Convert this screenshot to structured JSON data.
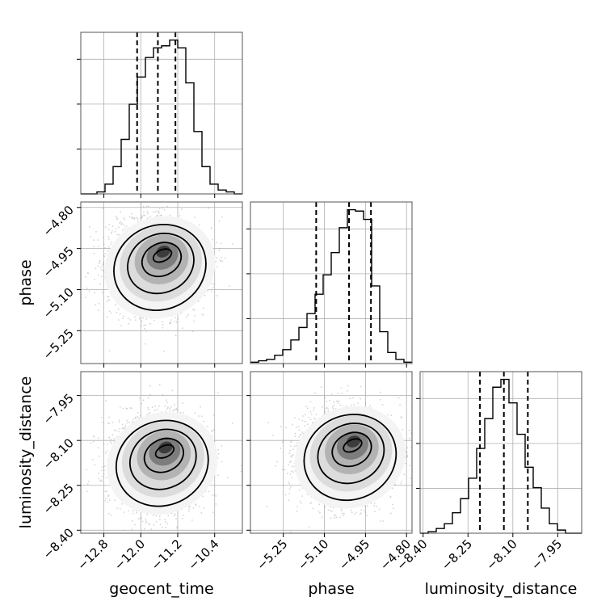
{
  "chart_data": {
    "type": "corner",
    "grid": true,
    "parameters": [
      "geocent_time",
      "phase",
      "luminosity_distance"
    ],
    "axis_labels": {
      "geocent_time": "geocent_time",
      "phase": "phase",
      "luminosity_distance": "luminosity_distance"
    },
    "ranges": {
      "geocent_time": [
        -13.3,
        -9.8
      ],
      "phase": [
        -5.37,
        -4.78
      ],
      "luminosity_distance": [
        -8.41,
        -7.87
      ]
    },
    "ticks": {
      "geocent_time": [
        -12.8,
        -12.0,
        -11.2,
        -10.4
      ],
      "phase": [
        -5.25,
        -5.1,
        -4.95,
        -4.8
      ],
      "luminosity_distance": [
        -8.4,
        -8.25,
        -8.1,
        -7.95
      ]
    },
    "tick_labels": {
      "geocent_time": [
        "−12.8",
        "−12.0",
        "−11.2",
        "−10.4"
      ],
      "phase": [
        "−5.25",
        "−5.10",
        "−4.95",
        "−4.80"
      ],
      "luminosity_distance": [
        "−8.40",
        "−8.25",
        "−8.10",
        "−7.95"
      ]
    },
    "quantiles": {
      "geocent_time": [
        -12.08,
        -11.63,
        -11.25
      ],
      "phase": [
        -5.13,
        -5.01,
        -4.93
      ],
      "luminosity_distance": [
        -8.21,
        -8.13,
        -8.05
      ]
    },
    "histograms": {
      "geocent_time": {
        "edges": [
          -13.3,
          -13.125,
          -12.95,
          -12.775,
          -12.6,
          -12.425,
          -12.25,
          -12.075,
          -11.9,
          -11.725,
          -11.55,
          -11.375,
          -11.2,
          -11.025,
          -10.85,
          -10.675,
          -10.5,
          -10.325,
          -10.15,
          -9.975,
          -9.8
        ],
        "counts": [
          0,
          0,
          1,
          5,
          14,
          28,
          46,
          60,
          70,
          75,
          76,
          79,
          75,
          57,
          32,
          14,
          5,
          2,
          1,
          0
        ]
      },
      "phase": {
        "edges": [
          -5.37,
          -5.3405,
          -5.311,
          -5.2815,
          -5.252,
          -5.2225,
          -5.193,
          -5.1635,
          -5.134,
          -5.1045,
          -5.075,
          -5.0455,
          -5.016,
          -4.9865,
          -4.957,
          -4.9275,
          -4.898,
          -4.8685,
          -4.839,
          -4.8095,
          -4.78
        ],
        "counts": [
          1,
          2,
          3,
          6,
          10,
          17,
          26,
          36,
          50,
          64,
          80,
          98,
          111,
          110,
          104,
          56,
          23,
          8,
          3,
          1
        ]
      },
      "luminosity_distance": {
        "edges": [
          -8.41,
          -8.383,
          -8.356,
          -8.329,
          -8.302,
          -8.275,
          -8.248,
          -8.221,
          -8.194,
          -8.167,
          -8.14,
          -8.113,
          -8.086,
          -8.059,
          -8.032,
          -8.005,
          -7.978,
          -7.951,
          -7.924,
          -7.897,
          -7.87
        ],
        "counts": [
          0,
          1,
          3,
          6,
          13,
          22,
          35,
          54,
          73,
          93,
          98,
          83,
          63,
          42,
          29,
          16,
          6,
          2,
          0,
          0
        ]
      }
    },
    "joint": [
      {
        "x": "geocent_time",
        "y": "phase",
        "mode": [
          -11.55,
          -4.99
        ]
      },
      {
        "x": "geocent_time",
        "y": "luminosity_distance",
        "mode": [
          -11.5,
          -8.15
        ]
      },
      {
        "x": "phase",
        "y": "luminosity_distance",
        "mode": [
          -5.0,
          -8.13
        ]
      }
    ]
  }
}
